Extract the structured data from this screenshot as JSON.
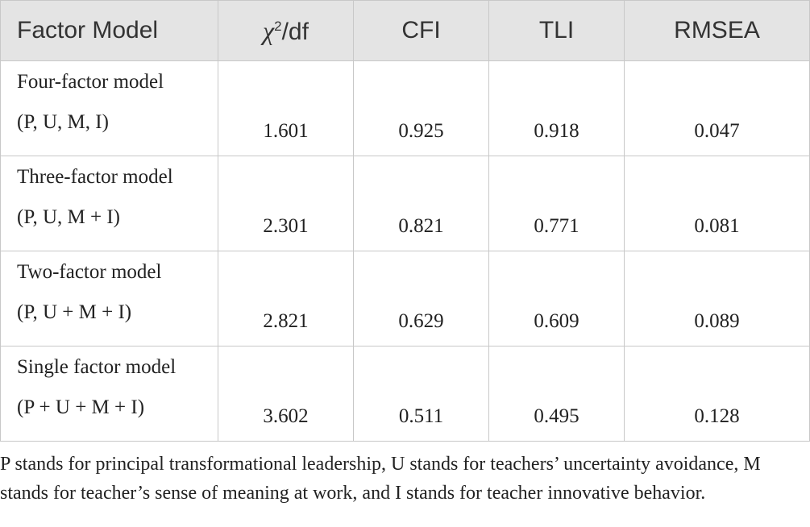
{
  "table": {
    "header": [
      {
        "text": "Factor Model"
      },
      {
        "base": "χ",
        "sup": "2",
        "suffix": "/df"
      },
      {
        "text": "CFI"
      },
      {
        "text": "TLI"
      },
      {
        "text": "RMSEA"
      }
    ],
    "rows": [
      {
        "name": "Four-factor model",
        "factors": "(P, U, M, I)",
        "values": [
          "1.601",
          "0.925",
          "0.918",
          "0.047"
        ]
      },
      {
        "name": "Three-factor model",
        "factors": "(P, U, M + I)",
        "values": [
          "2.301",
          "0.821",
          "0.771",
          "0.081"
        ]
      },
      {
        "name": "Two-factor model",
        "factors": "(P, U + M + I)",
        "values": [
          "2.821",
          "0.629",
          "0.609",
          "0.089"
        ]
      },
      {
        "name": "Single factor model",
        "factors": "(P + U + M + I)",
        "values": [
          "3.602",
          "0.511",
          "0.495",
          "0.128"
        ]
      }
    ]
  },
  "footnote": "P stands for principal transformational leadership, U stands for teachers’ uncertainty avoidance, M stands for teacher’s sense of meaning at work, and I stands for teacher innovative behavior."
}
